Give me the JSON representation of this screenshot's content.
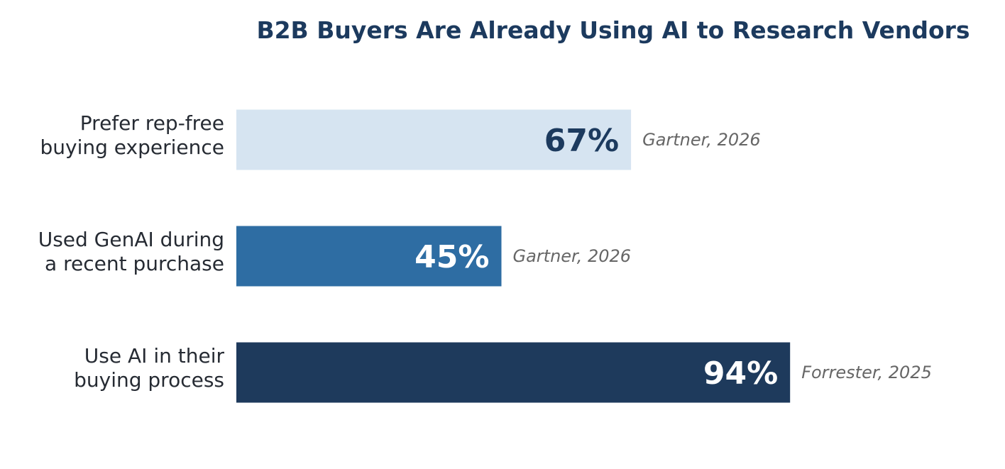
{
  "chart_data": {
    "type": "bar",
    "orientation": "horizontal",
    "title": "B2B Buyers Are Already Using AI to Research Vendors",
    "xlabel": "",
    "ylabel": "",
    "xlim": [
      0,
      100
    ],
    "grid": false,
    "legend": "none",
    "unit": "%",
    "categories": [
      [
        "Prefer rep-free",
        "buying experience"
      ],
      [
        "Used GenAI during",
        "a recent purchase"
      ],
      [
        "Use AI in their",
        "buying process"
      ]
    ],
    "values": [
      67,
      45,
      94
    ],
    "value_labels": [
      "67%",
      "45%",
      "94%"
    ],
    "sources": [
      "Gartner, 2026",
      "Gartner, 2026",
      "Forrester, 2025"
    ],
    "bar_colors": [
      "#d6e4f1",
      "#2e6da3",
      "#1e3a5c"
    ],
    "value_label_colors": [
      "#1c3a5e",
      "#ffffff",
      "#ffffff"
    ]
  },
  "colors": {
    "title": "#1c3a5e",
    "category_text": "#262b33",
    "source_text": "#666666"
  }
}
